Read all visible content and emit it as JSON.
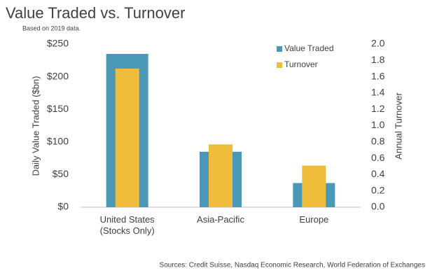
{
  "chart_data": {
    "type": "bar",
    "title": "Value Traded  vs. Turnover",
    "subtitle": "Based on 2019 data.",
    "source": "Sources: Credit Suisse, Nasdaq Economic Research, World Federation of Exchanges",
    "y_label": "Daily Value Traded ($bn)",
    "y2_label": "Annual Turnover",
    "categories": [
      "United States (Stocks Only)",
      "Asia-Pacific",
      "Europe"
    ],
    "series": [
      {
        "name": "Value Traded",
        "color": "#4a98b8",
        "values": [
          235,
          85,
          37
        ]
      },
      {
        "name": "Turnover",
        "color": "#f0bc3c",
        "values": [
          1.7,
          0.77,
          0.51
        ],
        "axis": "y2"
      }
    ],
    "ylim": [
      0,
      250
    ],
    "yticks": [
      {
        "value": 0,
        "label": "$0"
      },
      {
        "value": 50,
        "label": "$50"
      },
      {
        "value": 100,
        "label": "$100"
      },
      {
        "value": 150,
        "label": "$150"
      },
      {
        "value": 200,
        "label": "$200"
      },
      {
        "value": 250,
        "label": "$250"
      }
    ],
    "y2lim": [
      0,
      2.0
    ],
    "y2ticks": [
      {
        "value": 0,
        "label": "0.0"
      },
      0.2,
      0.4,
      0.6,
      0.8,
      {
        "value": 1,
        "label": "1.0"
      },
      1.2,
      1.4,
      1.6,
      1.8,
      {
        "value": 2,
        "label": "2.0"
      }
    ],
    "legend": "top-right",
    "grid": false
  }
}
